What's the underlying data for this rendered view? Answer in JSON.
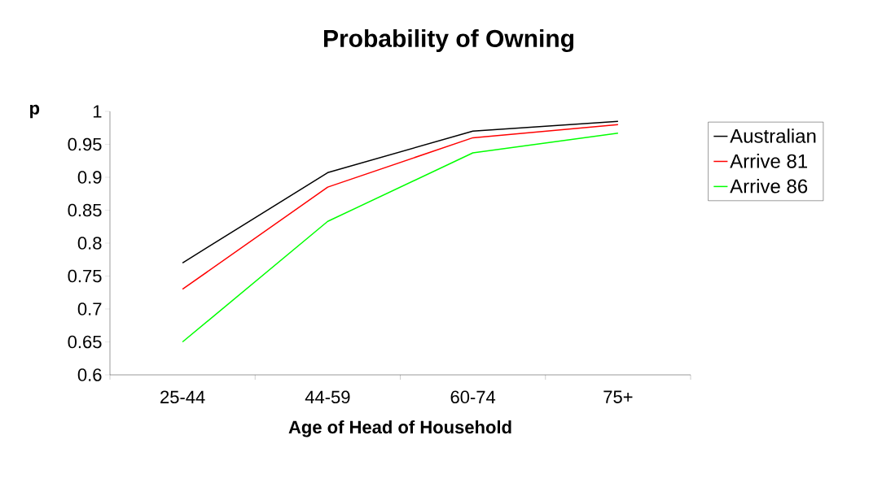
{
  "chart_data": {
    "type": "line",
    "title": "Probability of Owning",
    "xlabel": "Age of Head of Household",
    "ylabel": "p",
    "categories": [
      "25-44",
      "44-59",
      "60-74",
      "75+"
    ],
    "series": [
      {
        "name": "Australian",
        "color": "#000000",
        "values": [
          0.77,
          0.907,
          0.97,
          0.985
        ]
      },
      {
        "name": "Arrive 81",
        "color": "#ff0000",
        "values": [
          0.73,
          0.885,
          0.96,
          0.98
        ]
      },
      {
        "name": "Arrive 86",
        "color": "#00ff00",
        "values": [
          0.65,
          0.833,
          0.937,
          0.967
        ]
      }
    ],
    "ylim": [
      0.6,
      1
    ],
    "yticks": [
      0.6,
      0.65,
      0.7,
      0.75,
      0.8,
      0.85,
      0.9,
      0.95,
      1
    ],
    "grid": false,
    "legend": "right",
    "marker": "none",
    "line_style": "solid"
  }
}
